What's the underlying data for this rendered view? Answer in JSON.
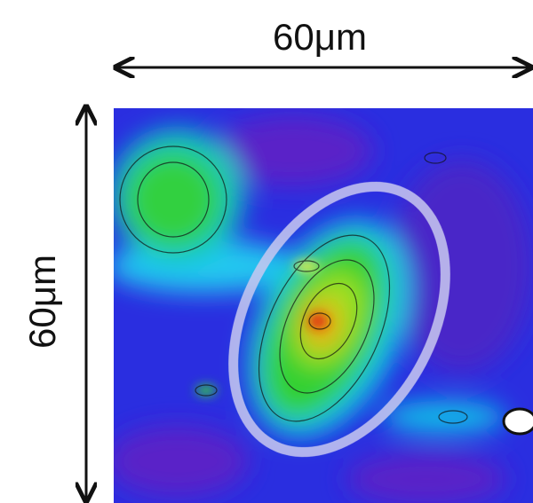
{
  "horizontal_scale": {
    "label": "60μm"
  },
  "vertical_scale": {
    "label": "60μm"
  }
}
